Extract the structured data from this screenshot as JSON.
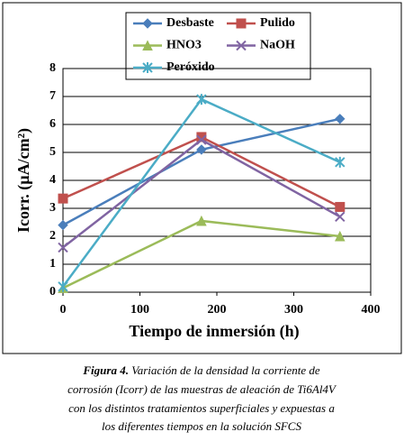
{
  "chart_data": {
    "type": "line",
    "xlabel": "Tiempo de inmersión (h)",
    "ylabel": "Icorr. (µA/cm²)",
    "x": [
      0,
      180,
      360
    ],
    "series": [
      {
        "name": "Desbaste",
        "color": "#4a7ebb",
        "marker": "diamond",
        "values": [
          2.4,
          5.1,
          6.2
        ]
      },
      {
        "name": "Pulido",
        "color": "#c0504d",
        "marker": "square",
        "values": [
          3.35,
          5.55,
          3.05
        ]
      },
      {
        "name": "HNO3",
        "color": "#9bbb59",
        "marker": "triangle",
        "values": [
          0.15,
          2.55,
          2.0
        ]
      },
      {
        "name": "NaOH",
        "color": "#8064a2",
        "marker": "x",
        "values": [
          1.6,
          5.45,
          2.7
        ]
      },
      {
        "name": "Peróxido",
        "color": "#4bacc6",
        "marker": "star",
        "values": [
          0.2,
          6.9,
          4.65
        ]
      }
    ],
    "xlim": [
      0,
      400
    ],
    "xticks": [
      0,
      100,
      200,
      300,
      400
    ],
    "ylim": [
      0,
      8
    ],
    "yticks": [
      0,
      1,
      2,
      3,
      4,
      5,
      6,
      7,
      8
    ],
    "grid": true,
    "legend": "top"
  },
  "caption": {
    "label": "Figura 4.",
    "lines": [
      "Variación de la densidad la corriente de",
      "corrosión (Icorr) de las muestras de aleación de Ti6Al4V",
      "con los distintos tratamientos superficiales y expuestas a",
      "los diferentes tiempos en la solución SFCS"
    ]
  }
}
